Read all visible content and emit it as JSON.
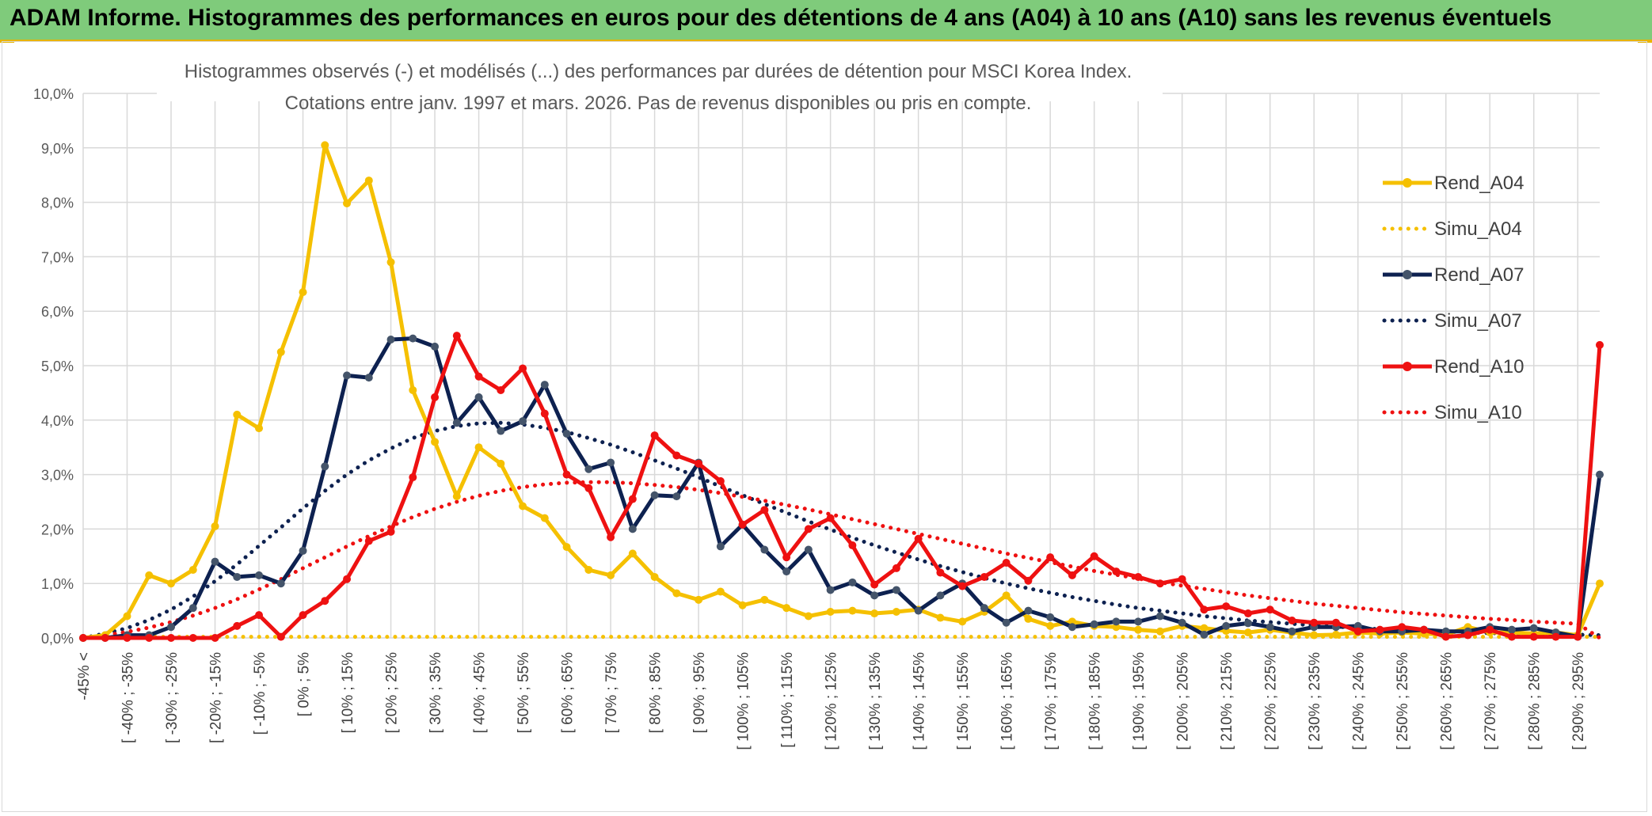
{
  "banner": {
    "title": "ADAM Informe. Histogrammes des performances en euros pour des détentions de 4 ans (A04) à 10 ans (A10) sans les revenus éventuels"
  },
  "chart_data": {
    "type": "line",
    "title": "Histogrammes observés (-) et modélisés (...) des performances par durées de détention pour MSCI Korea Index.",
    "subtitle": "Cotations entre janv. 1997 et mars. 2026. Pas de revenus disponibles ou pris en compte.",
    "xlabel": "",
    "ylabel": "",
    "ylim": [
      0,
      10
    ],
    "y_ticks": [
      "0,0%",
      "1,0%",
      "2,0%",
      "3,0%",
      "4,0%",
      "5,0%",
      "6,0%",
      "7,0%",
      "8,0%",
      "9,0%",
      "10,0%"
    ],
    "grid": true,
    "legend_position": "right",
    "x_tick_labels": [
      "-45% <",
      "[ -40% ; -35%",
      "[ -30% ; -25%",
      "[ -20% ; -15%",
      "[ -10% ; -5%",
      "[ 0% ; 5%",
      "[ 10% ; 15%",
      "[ 20% ; 25%",
      "[ 30% ; 35%",
      "[ 40% ; 45%",
      "[ 50% ; 55%",
      "[ 60% ; 65%",
      "[ 70% ; 75%",
      "[ 80% ; 85%",
      "[ 90% ; 95%",
      "[ 100% ; 105%",
      "[ 110% ; 115%",
      "[ 120% ; 125%",
      "[ 130% ; 135%",
      "[ 140% ; 145%",
      "[ 150% ; 155%",
      "[ 160% ; 165%",
      "[ 170% ; 175%",
      "[ 180% ; 185%",
      "[ 190% ; 195%",
      "[ 200% ; 205%",
      "[ 210% ; 215%",
      "[ 220% ; 225%",
      "[ 230% ; 235%",
      "[ 240% ; 245%",
      "[ 250% ; 255%",
      "[ 260% ; 265%",
      "[ 270% ; 275%",
      "[ 280% ; 285%",
      "[ 290% ; 295%"
    ],
    "n_categories": 70,
    "series": [
      {
        "name": "Rend_A04",
        "style": "solid",
        "color": "#f5c000",
        "markers": true,
        "values": [
          0.0,
          0.05,
          0.4,
          1.15,
          1.0,
          1.25,
          2.05,
          4.1,
          3.85,
          5.25,
          6.35,
          9.05,
          7.98,
          8.4,
          6.9,
          4.55,
          3.6,
          2.6,
          3.5,
          3.2,
          2.42,
          2.2,
          1.67,
          1.25,
          1.15,
          1.55,
          1.12,
          0.82,
          0.7,
          0.85,
          0.6,
          0.7,
          0.55,
          0.4,
          0.48,
          0.5,
          0.45,
          0.48,
          0.52,
          0.37,
          0.3,
          0.48,
          0.78,
          0.35,
          0.22,
          0.3,
          0.22,
          0.2,
          0.15,
          0.12,
          0.22,
          0.18,
          0.13,
          0.1,
          0.15,
          0.1,
          0.05,
          0.06,
          0.1,
          0.08,
          0.1,
          0.08,
          0.06,
          0.2,
          0.1,
          0.1,
          0.08,
          0.1,
          0.05,
          1.0
        ]
      },
      {
        "name": "Simu_A04",
        "style": "dotted",
        "color": "#f5c000",
        "markers": false,
        "values": [
          0.02,
          0.02,
          0.02,
          0.02,
          0.02,
          0.02,
          0.02,
          0.02,
          0.02,
          0.02,
          0.02,
          0.02,
          0.02,
          0.02,
          0.02,
          0.02,
          0.02,
          0.02,
          0.02,
          0.02,
          0.02,
          0.02,
          0.02,
          0.02,
          0.02,
          0.02,
          0.02,
          0.02,
          0.02,
          0.02,
          0.02,
          0.02,
          0.02,
          0.02,
          0.02,
          0.02,
          0.02,
          0.02,
          0.02,
          0.02,
          0.02,
          0.02,
          0.02,
          0.02,
          0.02,
          0.02,
          0.02,
          0.02,
          0.02,
          0.02,
          0.02,
          0.02,
          0.02,
          0.02,
          0.02,
          0.02,
          0.02,
          0.02,
          0.02,
          0.02,
          0.02,
          0.02,
          0.02,
          0.02,
          0.02,
          0.02,
          0.02,
          0.02,
          0.02,
          0.02
        ]
      },
      {
        "name": "Rend_A07",
        "style": "solid",
        "color": "#0d2150",
        "markers": true,
        "values": [
          0.0,
          0.0,
          0.05,
          0.05,
          0.2,
          0.55,
          1.4,
          1.12,
          1.15,
          1.0,
          1.6,
          3.15,
          4.82,
          4.78,
          5.48,
          5.5,
          5.35,
          3.95,
          4.42,
          3.8,
          3.98,
          4.65,
          3.75,
          3.1,
          3.22,
          2.0,
          2.62,
          2.6,
          3.22,
          1.68,
          2.08,
          1.62,
          1.22,
          1.62,
          0.88,
          1.02,
          0.78,
          0.88,
          0.5,
          0.78,
          1.0,
          0.55,
          0.28,
          0.5,
          0.38,
          0.2,
          0.25,
          0.3,
          0.3,
          0.4,
          0.28,
          0.06,
          0.22,
          0.27,
          0.2,
          0.12,
          0.2,
          0.2,
          0.22,
          0.12,
          0.12,
          0.15,
          0.12,
          0.12,
          0.2,
          0.15,
          0.18,
          0.1,
          0.02,
          3.0
        ]
      },
      {
        "name": "Simu_A07",
        "style": "dotted",
        "color": "#0d2150",
        "markers": false,
        "values": [
          0.0,
          0.08,
          0.18,
          0.33,
          0.52,
          0.76,
          1.04,
          1.35,
          1.69,
          2.03,
          2.38,
          2.7,
          3.0,
          3.26,
          3.48,
          3.67,
          3.8,
          3.89,
          3.94,
          3.95,
          3.92,
          3.86,
          3.78,
          3.67,
          3.55,
          3.41,
          3.26,
          3.11,
          2.95,
          2.78,
          2.62,
          2.46,
          2.3,
          2.14,
          1.99,
          1.84,
          1.7,
          1.57,
          1.44,
          1.32,
          1.21,
          1.1,
          1.0,
          0.91,
          0.83,
          0.75,
          0.68,
          0.61,
          0.55,
          0.5,
          0.45,
          0.4,
          0.36,
          0.32,
          0.29,
          0.26,
          0.23,
          0.21,
          0.18,
          0.16,
          0.15,
          0.13,
          0.12,
          0.1,
          0.09,
          0.08,
          0.07,
          0.06,
          0.06,
          0.05
        ]
      },
      {
        "name": "Rend_A10",
        "style": "solid",
        "color": "#ee1111",
        "markers": true,
        "values": [
          0.0,
          0.0,
          0.0,
          0.0,
          0.0,
          0.0,
          0.0,
          0.22,
          0.42,
          0.02,
          0.42,
          0.68,
          1.08,
          1.78,
          1.95,
          2.95,
          4.42,
          5.55,
          4.8,
          4.55,
          4.95,
          4.12,
          3.0,
          2.75,
          1.85,
          2.55,
          3.72,
          3.35,
          3.2,
          2.88,
          2.08,
          2.35,
          1.48,
          2.0,
          2.2,
          1.7,
          0.98,
          1.28,
          1.82,
          1.2,
          0.95,
          1.12,
          1.38,
          1.05,
          1.48,
          1.15,
          1.5,
          1.22,
          1.12,
          1.0,
          1.08,
          0.52,
          0.58,
          0.45,
          0.52,
          0.32,
          0.28,
          0.28,
          0.12,
          0.15,
          0.2,
          0.15,
          0.02,
          0.05,
          0.15,
          0.02,
          0.02,
          0.02,
          0.02,
          5.38
        ]
      },
      {
        "name": "Simu_A10",
        "style": "dotted",
        "color": "#ee1111",
        "markers": false,
        "values": [
          0.0,
          0.05,
          0.11,
          0.19,
          0.29,
          0.41,
          0.55,
          0.71,
          0.89,
          1.08,
          1.28,
          1.48,
          1.68,
          1.87,
          2.05,
          2.22,
          2.37,
          2.5,
          2.61,
          2.7,
          2.77,
          2.82,
          2.85,
          2.86,
          2.86,
          2.84,
          2.81,
          2.77,
          2.72,
          2.66,
          2.59,
          2.52,
          2.44,
          2.36,
          2.27,
          2.18,
          2.09,
          2.0,
          1.91,
          1.82,
          1.73,
          1.64,
          1.55,
          1.47,
          1.39,
          1.31,
          1.23,
          1.16,
          1.09,
          1.02,
          0.96,
          0.9,
          0.84,
          0.78,
          0.73,
          0.68,
          0.63,
          0.59,
          0.55,
          0.51,
          0.47,
          0.44,
          0.41,
          0.38,
          0.35,
          0.33,
          0.3,
          0.28,
          0.26,
          0.0
        ]
      }
    ]
  }
}
